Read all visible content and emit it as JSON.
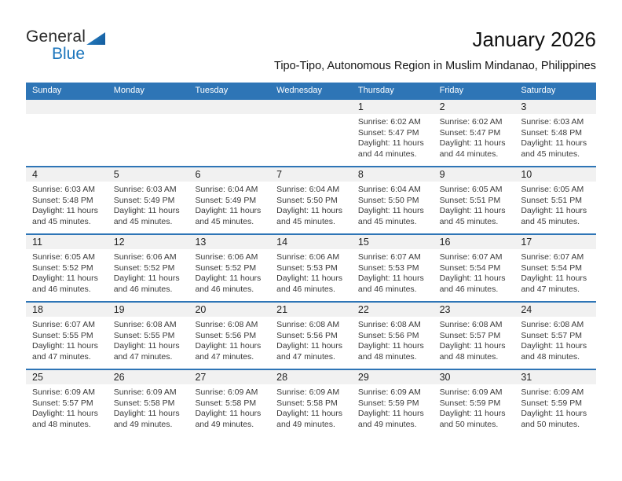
{
  "logo": {
    "line1": "General",
    "line2": "Blue"
  },
  "header": {
    "title": "January 2026",
    "subtitle": "Tipo-Tipo, Autonomous Region in Muslim Mindanao, Philippines"
  },
  "colors": {
    "header_blue": "#2E75B6",
    "logo_blue": "#1B75BC",
    "band_gray": "#F1F1F1"
  },
  "weekdays": [
    "Sunday",
    "Monday",
    "Tuesday",
    "Wednesday",
    "Thursday",
    "Friday",
    "Saturday"
  ],
  "weeks": [
    [
      null,
      null,
      null,
      null,
      {
        "day": "1",
        "sunrise": "Sunrise: 6:02 AM",
        "sunset": "Sunset: 5:47 PM",
        "daylight1": "Daylight: 11 hours",
        "daylight2": "and 44 minutes."
      },
      {
        "day": "2",
        "sunrise": "Sunrise: 6:02 AM",
        "sunset": "Sunset: 5:47 PM",
        "daylight1": "Daylight: 11 hours",
        "daylight2": "and 44 minutes."
      },
      {
        "day": "3",
        "sunrise": "Sunrise: 6:03 AM",
        "sunset": "Sunset: 5:48 PM",
        "daylight1": "Daylight: 11 hours",
        "daylight2": "and 45 minutes."
      }
    ],
    [
      {
        "day": "4",
        "sunrise": "Sunrise: 6:03 AM",
        "sunset": "Sunset: 5:48 PM",
        "daylight1": "Daylight: 11 hours",
        "daylight2": "and 45 minutes."
      },
      {
        "day": "5",
        "sunrise": "Sunrise: 6:03 AM",
        "sunset": "Sunset: 5:49 PM",
        "daylight1": "Daylight: 11 hours",
        "daylight2": "and 45 minutes."
      },
      {
        "day": "6",
        "sunrise": "Sunrise: 6:04 AM",
        "sunset": "Sunset: 5:49 PM",
        "daylight1": "Daylight: 11 hours",
        "daylight2": "and 45 minutes."
      },
      {
        "day": "7",
        "sunrise": "Sunrise: 6:04 AM",
        "sunset": "Sunset: 5:50 PM",
        "daylight1": "Daylight: 11 hours",
        "daylight2": "and 45 minutes."
      },
      {
        "day": "8",
        "sunrise": "Sunrise: 6:04 AM",
        "sunset": "Sunset: 5:50 PM",
        "daylight1": "Daylight: 11 hours",
        "daylight2": "and 45 minutes."
      },
      {
        "day": "9",
        "sunrise": "Sunrise: 6:05 AM",
        "sunset": "Sunset: 5:51 PM",
        "daylight1": "Daylight: 11 hours",
        "daylight2": "and 45 minutes."
      },
      {
        "day": "10",
        "sunrise": "Sunrise: 6:05 AM",
        "sunset": "Sunset: 5:51 PM",
        "daylight1": "Daylight: 11 hours",
        "daylight2": "and 45 minutes."
      }
    ],
    [
      {
        "day": "11",
        "sunrise": "Sunrise: 6:05 AM",
        "sunset": "Sunset: 5:52 PM",
        "daylight1": "Daylight: 11 hours",
        "daylight2": "and 46 minutes."
      },
      {
        "day": "12",
        "sunrise": "Sunrise: 6:06 AM",
        "sunset": "Sunset: 5:52 PM",
        "daylight1": "Daylight: 11 hours",
        "daylight2": "and 46 minutes."
      },
      {
        "day": "13",
        "sunrise": "Sunrise: 6:06 AM",
        "sunset": "Sunset: 5:52 PM",
        "daylight1": "Daylight: 11 hours",
        "daylight2": "and 46 minutes."
      },
      {
        "day": "14",
        "sunrise": "Sunrise: 6:06 AM",
        "sunset": "Sunset: 5:53 PM",
        "daylight1": "Daylight: 11 hours",
        "daylight2": "and 46 minutes."
      },
      {
        "day": "15",
        "sunrise": "Sunrise: 6:07 AM",
        "sunset": "Sunset: 5:53 PM",
        "daylight1": "Daylight: 11 hours",
        "daylight2": "and 46 minutes."
      },
      {
        "day": "16",
        "sunrise": "Sunrise: 6:07 AM",
        "sunset": "Sunset: 5:54 PM",
        "daylight1": "Daylight: 11 hours",
        "daylight2": "and 46 minutes."
      },
      {
        "day": "17",
        "sunrise": "Sunrise: 6:07 AM",
        "sunset": "Sunset: 5:54 PM",
        "daylight1": "Daylight: 11 hours",
        "daylight2": "and 47 minutes."
      }
    ],
    [
      {
        "day": "18",
        "sunrise": "Sunrise: 6:07 AM",
        "sunset": "Sunset: 5:55 PM",
        "daylight1": "Daylight: 11 hours",
        "daylight2": "and 47 minutes."
      },
      {
        "day": "19",
        "sunrise": "Sunrise: 6:08 AM",
        "sunset": "Sunset: 5:55 PM",
        "daylight1": "Daylight: 11 hours",
        "daylight2": "and 47 minutes."
      },
      {
        "day": "20",
        "sunrise": "Sunrise: 6:08 AM",
        "sunset": "Sunset: 5:56 PM",
        "daylight1": "Daylight: 11 hours",
        "daylight2": "and 47 minutes."
      },
      {
        "day": "21",
        "sunrise": "Sunrise: 6:08 AM",
        "sunset": "Sunset: 5:56 PM",
        "daylight1": "Daylight: 11 hours",
        "daylight2": "and 47 minutes."
      },
      {
        "day": "22",
        "sunrise": "Sunrise: 6:08 AM",
        "sunset": "Sunset: 5:56 PM",
        "daylight1": "Daylight: 11 hours",
        "daylight2": "and 48 minutes."
      },
      {
        "day": "23",
        "sunrise": "Sunrise: 6:08 AM",
        "sunset": "Sunset: 5:57 PM",
        "daylight1": "Daylight: 11 hours",
        "daylight2": "and 48 minutes."
      },
      {
        "day": "24",
        "sunrise": "Sunrise: 6:08 AM",
        "sunset": "Sunset: 5:57 PM",
        "daylight1": "Daylight: 11 hours",
        "daylight2": "and 48 minutes."
      }
    ],
    [
      {
        "day": "25",
        "sunrise": "Sunrise: 6:09 AM",
        "sunset": "Sunset: 5:57 PM",
        "daylight1": "Daylight: 11 hours",
        "daylight2": "and 48 minutes."
      },
      {
        "day": "26",
        "sunrise": "Sunrise: 6:09 AM",
        "sunset": "Sunset: 5:58 PM",
        "daylight1": "Daylight: 11 hours",
        "daylight2": "and 49 minutes."
      },
      {
        "day": "27",
        "sunrise": "Sunrise: 6:09 AM",
        "sunset": "Sunset: 5:58 PM",
        "daylight1": "Daylight: 11 hours",
        "daylight2": "and 49 minutes."
      },
      {
        "day": "28",
        "sunrise": "Sunrise: 6:09 AM",
        "sunset": "Sunset: 5:58 PM",
        "daylight1": "Daylight: 11 hours",
        "daylight2": "and 49 minutes."
      },
      {
        "day": "29",
        "sunrise": "Sunrise: 6:09 AM",
        "sunset": "Sunset: 5:59 PM",
        "daylight1": "Daylight: 11 hours",
        "daylight2": "and 49 minutes."
      },
      {
        "day": "30",
        "sunrise": "Sunrise: 6:09 AM",
        "sunset": "Sunset: 5:59 PM",
        "daylight1": "Daylight: 11 hours",
        "daylight2": "and 50 minutes."
      },
      {
        "day": "31",
        "sunrise": "Sunrise: 6:09 AM",
        "sunset": "Sunset: 5:59 PM",
        "daylight1": "Daylight: 11 hours",
        "daylight2": "and 50 minutes."
      }
    ]
  ]
}
